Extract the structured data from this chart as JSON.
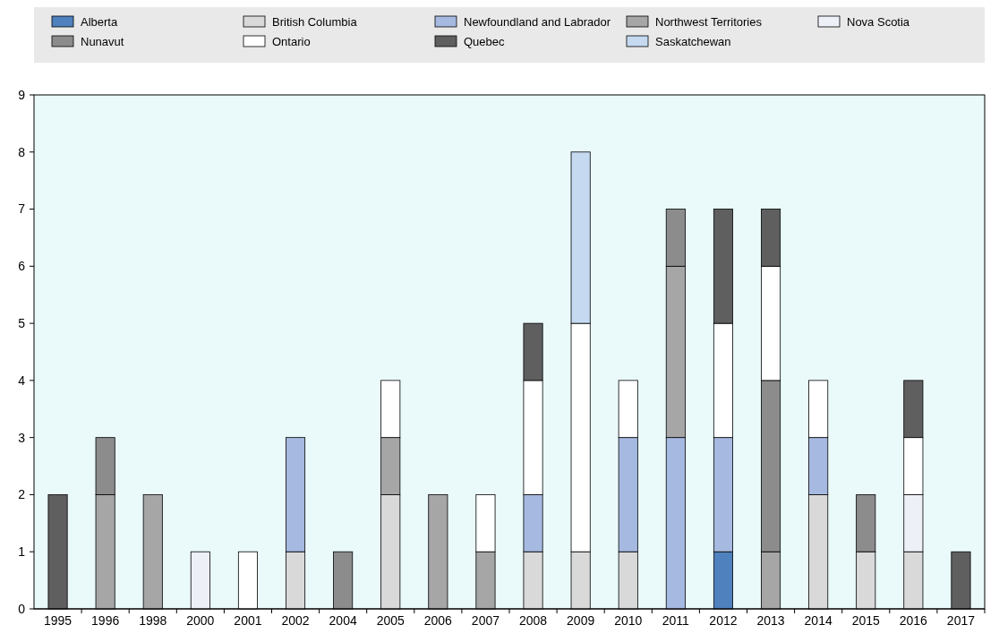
{
  "chart_data": {
    "type": "bar",
    "stacked": true,
    "legend": "top",
    "ylim": [
      0,
      9
    ],
    "yticks": [
      0,
      1,
      2,
      3,
      4,
      5,
      6,
      7,
      8,
      9
    ],
    "categories": [
      "1995",
      "1996",
      "1998",
      "2000",
      "2001",
      "2002",
      "2004",
      "2005",
      "2006",
      "2007",
      "2008",
      "2009",
      "2010",
      "2011",
      "2012",
      "2013",
      "2014",
      "2015",
      "2016",
      "2017"
    ],
    "series": [
      {
        "name": "Alberta",
        "color": "#4e81bd",
        "values": [
          0,
          0,
          0,
          0,
          0,
          0,
          0,
          0,
          0,
          0,
          0,
          0,
          0,
          0,
          1,
          0,
          0,
          0,
          0,
          0
        ]
      },
      {
        "name": "British Columbia",
        "color": "#d9d9d9",
        "values": [
          0,
          0,
          0,
          0,
          0,
          1,
          0,
          2,
          0,
          0,
          1,
          1,
          1,
          0,
          0,
          0,
          2,
          1,
          1,
          0
        ]
      },
      {
        "name": "Newfoundland and Labrador",
        "color": "#a6b9e0",
        "values": [
          0,
          0,
          0,
          0,
          0,
          2,
          0,
          0,
          0,
          0,
          1,
          0,
          2,
          3,
          2,
          0,
          1,
          0,
          0,
          0
        ]
      },
      {
        "name": "Northwest Territories",
        "color": "#a6a6a6",
        "values": [
          0,
          2,
          2,
          0,
          0,
          0,
          0,
          1,
          2,
          1,
          0,
          0,
          0,
          3,
          0,
          1,
          0,
          0,
          0,
          0
        ]
      },
      {
        "name": "Nova Scotia",
        "color": "#eef0f8",
        "values": [
          0,
          0,
          0,
          1,
          0,
          0,
          0,
          0,
          0,
          0,
          0,
          0,
          0,
          0,
          0,
          0,
          0,
          0,
          1,
          0
        ]
      },
      {
        "name": "Nunavut",
        "color": "#8c8c8c",
        "values": [
          0,
          1,
          0,
          0,
          0,
          0,
          1,
          0,
          0,
          0,
          0,
          0,
          0,
          1,
          0,
          3,
          0,
          1,
          0,
          0
        ]
      },
      {
        "name": "Ontario",
        "color": "#ffffff",
        "values": [
          0,
          0,
          0,
          0,
          1,
          0,
          0,
          1,
          0,
          1,
          2,
          4,
          1,
          0,
          2,
          2,
          1,
          0,
          1,
          0
        ]
      },
      {
        "name": "Quebec",
        "color": "#5f5f5f",
        "values": [
          2,
          0,
          0,
          0,
          0,
          0,
          0,
          0,
          0,
          0,
          1,
          0,
          0,
          0,
          2,
          1,
          0,
          0,
          1,
          1
        ]
      },
      {
        "name": "Saskatchewan",
        "color": "#c5d9f1",
        "values": [
          0,
          0,
          0,
          0,
          0,
          0,
          0,
          0,
          0,
          0,
          0,
          3,
          0,
          0,
          0,
          0,
          0,
          0,
          0,
          0
        ]
      }
    ]
  }
}
